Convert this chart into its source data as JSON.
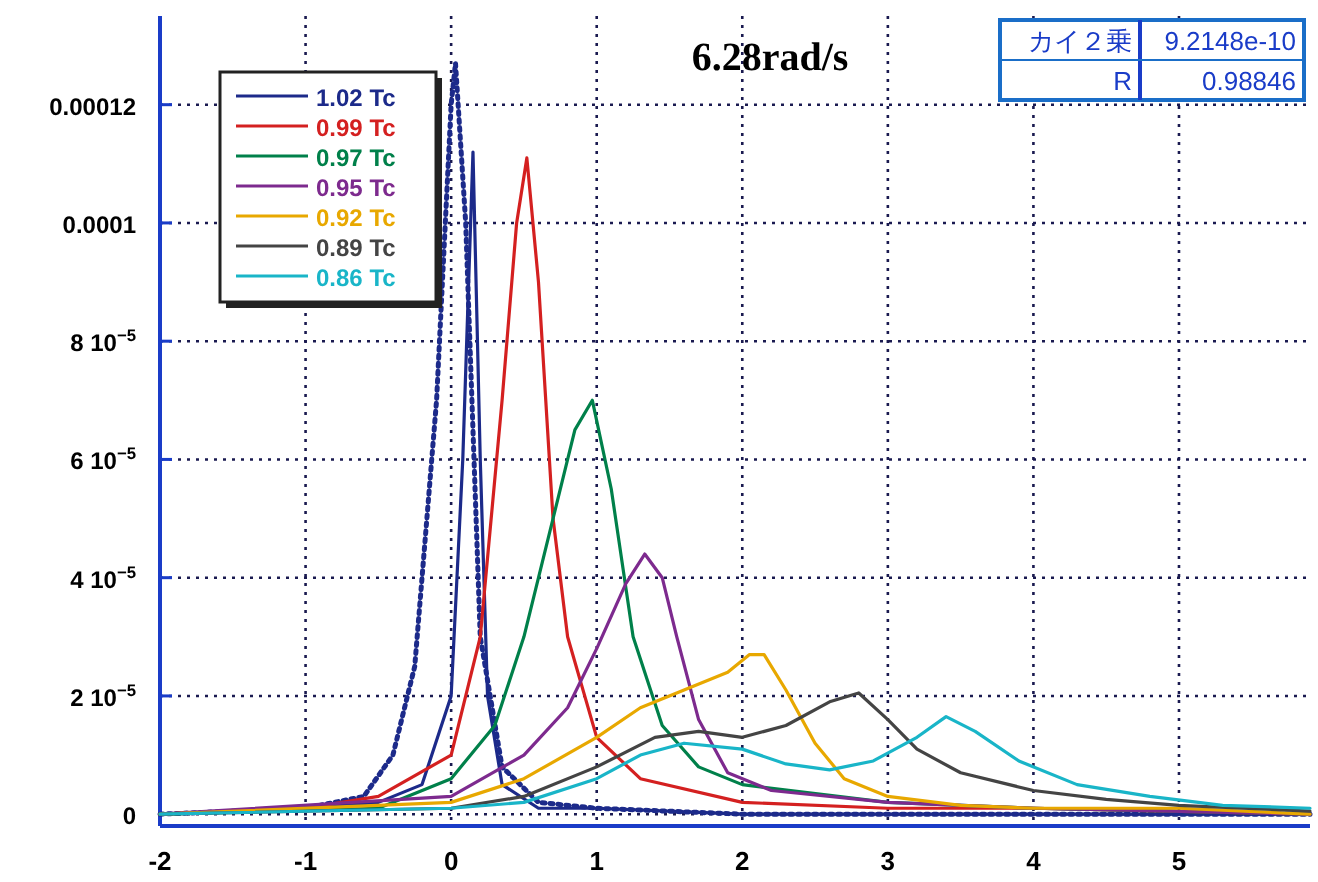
{
  "chart_data": {
    "type": "line",
    "title": "6.28rad/s",
    "xlim": [
      -2,
      5.9
    ],
    "ylim": [
      -2e-06,
      0.000135
    ],
    "xticks": [
      -2,
      -1,
      0,
      1,
      2,
      3,
      4,
      5
    ],
    "yticks": [
      0,
      {
        "value": 2e-05,
        "label": "2 10$^{−5}$"
      },
      {
        "value": 4e-05,
        "label": "4 10$^{−5}$"
      },
      {
        "value": 6e-05,
        "label": "6 10$^{−5}$"
      },
      {
        "value": 8e-05,
        "label": "8 10$^{−5}$"
      },
      0.0001,
      0.00012
    ],
    "grid": true,
    "legend": "top left",
    "annotations": [
      "カイ２乗",
      "9.2148e-10",
      "R",
      "0.98846"
    ],
    "series": [
      {
        "name": "1.02 Tc",
        "color": "#1c2a8a",
        "x": [
          -2,
          -1,
          -0.5,
          -0.2,
          0,
          0.08,
          0.15,
          0.2,
          0.25,
          0.35,
          0.6,
          1,
          2,
          4,
          5.9
        ],
        "values": [
          0,
          1e-06,
          2e-06,
          5e-06,
          2e-05,
          6e-05,
          0.000112,
          6e-05,
          2e-05,
          5e-06,
          1e-06,
          1e-06,
          0,
          0,
          0
        ]
      },
      {
        "line_style": "dotted",
        "color": "#1c2a8a",
        "x": [
          -2,
          -1,
          -0.6,
          -0.4,
          -0.25,
          -0.1,
          0,
          0.03,
          0.1,
          0.2,
          0.35,
          0.6,
          1,
          2,
          4,
          5.9
        ],
        "values": [
          0,
          1e-06,
          3e-06,
          1e-05,
          2.5e-05,
          7e-05,
          0.00012,
          0.000127,
          0.0001,
          3e-05,
          8e-06,
          2e-06,
          1e-06,
          0,
          0,
          0
        ]
      },
      {
        "name": "0.99 Tc",
        "color": "#d42020",
        "x": [
          -2,
          -1,
          -0.5,
          0,
          0.2,
          0.35,
          0.45,
          0.52,
          0.6,
          0.7,
          0.8,
          1,
          1.3,
          2,
          3,
          4,
          5.9
        ],
        "values": [
          0,
          1e-06,
          3e-06,
          1e-05,
          3e-05,
          7e-05,
          0.0001,
          0.000111,
          9e-05,
          5e-05,
          3e-05,
          1.3e-05,
          6e-06,
          2e-06,
          1e-06,
          1e-06,
          0
        ]
      },
      {
        "name": "0.97 Tc",
        "color": "#00804a",
        "x": [
          -2,
          -0.5,
          0,
          0.3,
          0.5,
          0.7,
          0.85,
          0.97,
          1.1,
          1.25,
          1.45,
          1.7,
          2,
          3,
          4,
          5.9
        ],
        "values": [
          0,
          1e-06,
          6e-06,
          1.5e-05,
          3e-05,
          5e-05,
          6.5e-05,
          7e-05,
          5.5e-05,
          3e-05,
          1.5e-05,
          8e-06,
          5e-06,
          2e-06,
          1e-06,
          0
        ]
      },
      {
        "name": "0.95 Tc",
        "color": "#7d2a8e",
        "x": [
          -2,
          0,
          0.5,
          0.8,
          1,
          1.2,
          1.33,
          1.45,
          1.55,
          1.7,
          1.9,
          2.2,
          3,
          4,
          5.9
        ],
        "values": [
          0,
          3e-06,
          1e-05,
          1.8e-05,
          2.8e-05,
          3.9e-05,
          4.4e-05,
          4e-05,
          3e-05,
          1.6e-05,
          7e-06,
          4e-06,
          2e-06,
          1e-06,
          0
        ]
      },
      {
        "name": "0.92 Tc",
        "color": "#e8a800",
        "x": [
          -2,
          0,
          0.5,
          1,
          1.3,
          1.6,
          1.9,
          2.05,
          2.15,
          2.3,
          2.5,
          2.7,
          3,
          3.5,
          4,
          5,
          5.9
        ],
        "values": [
          0,
          2e-06,
          6e-06,
          1.3e-05,
          1.8e-05,
          2.1e-05,
          2.4e-05,
          2.7e-05,
          2.7e-05,
          2.1e-05,
          1.2e-05,
          6e-06,
          3e-06,
          1.5e-06,
          1e-06,
          1e-06,
          0
        ]
      },
      {
        "name": "0.89 Tc",
        "color": "#444444",
        "x": [
          -2,
          0,
          0.5,
          1,
          1.4,
          1.7,
          2,
          2.3,
          2.6,
          2.8,
          3,
          3.2,
          3.5,
          4,
          4.5,
          5,
          5.9
        ],
        "values": [
          0,
          1e-06,
          3e-06,
          8e-06,
          1.3e-05,
          1.4e-05,
          1.3e-05,
          1.5e-05,
          1.9e-05,
          2.05e-05,
          1.6e-05,
          1.1e-05,
          7e-06,
          4e-06,
          2.5e-06,
          1.5e-06,
          5e-07
        ]
      },
      {
        "name": "0.86 Tc",
        "color": "#19b5c8",
        "x": [
          -2,
          0,
          0.5,
          1,
          1.3,
          1.6,
          2,
          2.3,
          2.6,
          2.9,
          3.2,
          3.4,
          3.6,
          3.9,
          4.3,
          4.8,
          5.3,
          5.9
        ],
        "values": [
          0,
          1e-06,
          2e-06,
          6e-06,
          1e-05,
          1.2e-05,
          1.1e-05,
          8.5e-06,
          7.5e-06,
          9e-06,
          1.3e-05,
          1.65e-05,
          1.4e-05,
          9e-06,
          5e-06,
          3e-06,
          1.5e-06,
          1e-06
        ]
      }
    ]
  }
}
